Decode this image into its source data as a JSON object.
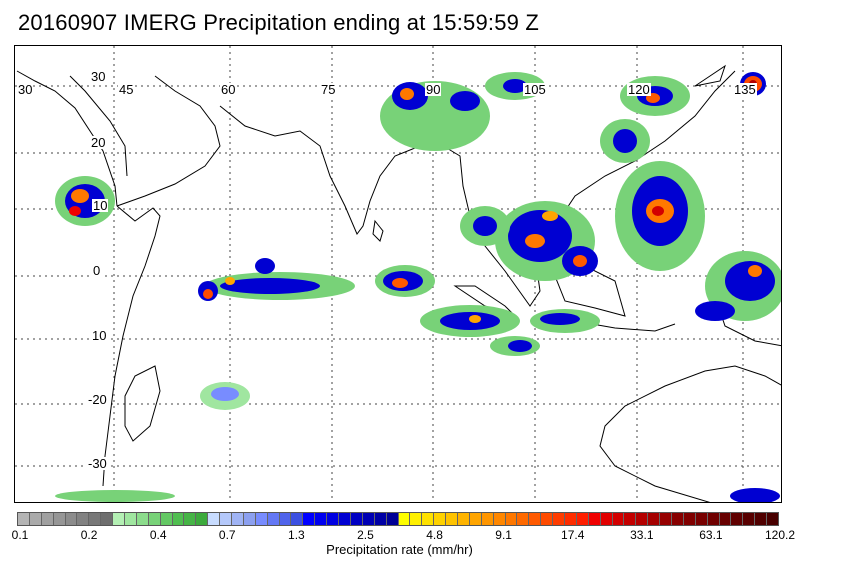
{
  "title": "20160907 IMERG Precipitation ending at 15:59:59 Z",
  "map": {
    "lon_labels": [
      "30",
      "45",
      "60",
      "75",
      "90",
      "105",
      "120",
      "135"
    ],
    "lat_labels": [
      "30",
      "20",
      "10",
      "0",
      "10",
      "-20",
      "-30"
    ]
  },
  "colorbar": {
    "label": "Precipitation rate (mm/hr)",
    "ticks": [
      "0.1",
      "0.2",
      "0.4",
      "0.7",
      "1.3",
      "2.5",
      "4.8",
      "9.1",
      "17.4",
      "33.1",
      "63.1",
      "120.2"
    ],
    "colors": [
      "#b4b4b4",
      "#aaaaaa",
      "#a0a0a0",
      "#969696",
      "#8c8c8c",
      "#828282",
      "#787878",
      "#6e6e6e",
      "#b4f0b4",
      "#a0e6a0",
      "#8cdc8c",
      "#78d278",
      "#64c864",
      "#50be50",
      "#46b446",
      "#3caa3c",
      "#c8dcff",
      "#b4c8fa",
      "#a0b4f5",
      "#8ca0f0",
      "#788cff",
      "#6478f5",
      "#5064eb",
      "#3c50e1",
      "#0000ff",
      "#0000f0",
      "#0000e1",
      "#0000d2",
      "#0000c3",
      "#0000b4",
      "#0000a5",
      "#000096",
      "#ffff00",
      "#fff000",
      "#ffe100",
      "#ffd200",
      "#ffc300",
      "#ffb400",
      "#ffa500",
      "#ff9600",
      "#ff8700",
      "#ff7800",
      "#ff6900",
      "#ff5a00",
      "#ff4b00",
      "#ff3c00",
      "#ff2d00",
      "#ff1e00",
      "#f00000",
      "#e10000",
      "#d20000",
      "#c30000",
      "#b40000",
      "#a50000",
      "#960000",
      "#870000",
      "#800000",
      "#780000",
      "#700000",
      "#680000",
      "#600000",
      "#580000",
      "#500000",
      "#480000"
    ]
  }
}
